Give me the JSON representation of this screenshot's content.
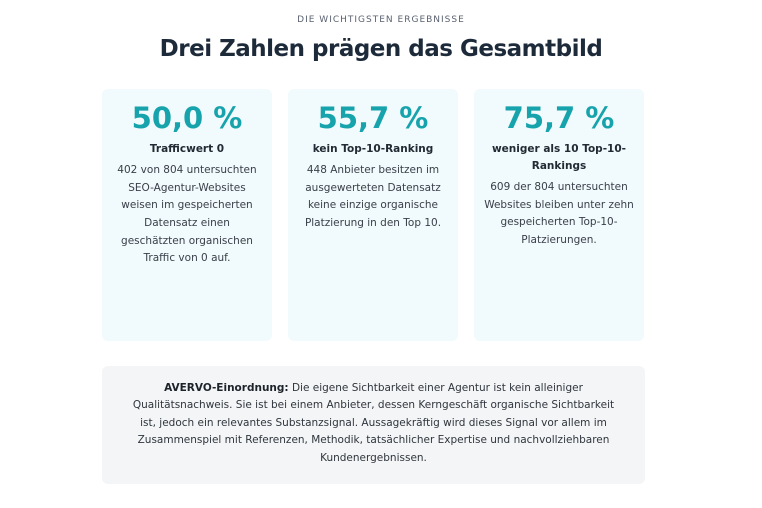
{
  "section": {
    "eyebrow": "DIE WICHTIGSTEN ERGEBNISSE",
    "headline": "Drei Zahlen prägen das Gesamtbild"
  },
  "cards": [
    {
      "stat": "50,0 %",
      "label": "Trafficwert 0",
      "desc": "402 von 804 untersuchten SEO-Agentur-Websites weisen im gespeicherten Datensatz einen geschätzten organischen Traffic von 0 auf."
    },
    {
      "stat": "55,7 %",
      "label": "kein Top-10-Ranking",
      "desc": "448 Anbieter besitzen im ausgewerteten Datensatz keine einzige organische Platzierung in den Top 10."
    },
    {
      "stat": "75,7 %",
      "label": "weniger als 10 Top-10-Rankings",
      "desc": "609 der 804 untersuchten Websites bleiben unter zehn gespeicherten Top-10-Platzierungen."
    }
  ],
  "note": {
    "lead": "AVERVO-Einordnung:",
    "text": " Die eigene Sichtbarkeit einer Agentur ist kein alleiniger Qualitätsnachweis. Sie ist bei einem Anbieter, dessen Kerngeschäft organische Sichtbarkeit ist, jedoch ein relevantes Substanzsignal. Aussagekräftig wird dieses Signal vor allem im Zusammenspiel mit Referenzen, Methodik, tatsächlicher Expertise und nachvollziehbaren Kundenergebnissen."
  }
}
